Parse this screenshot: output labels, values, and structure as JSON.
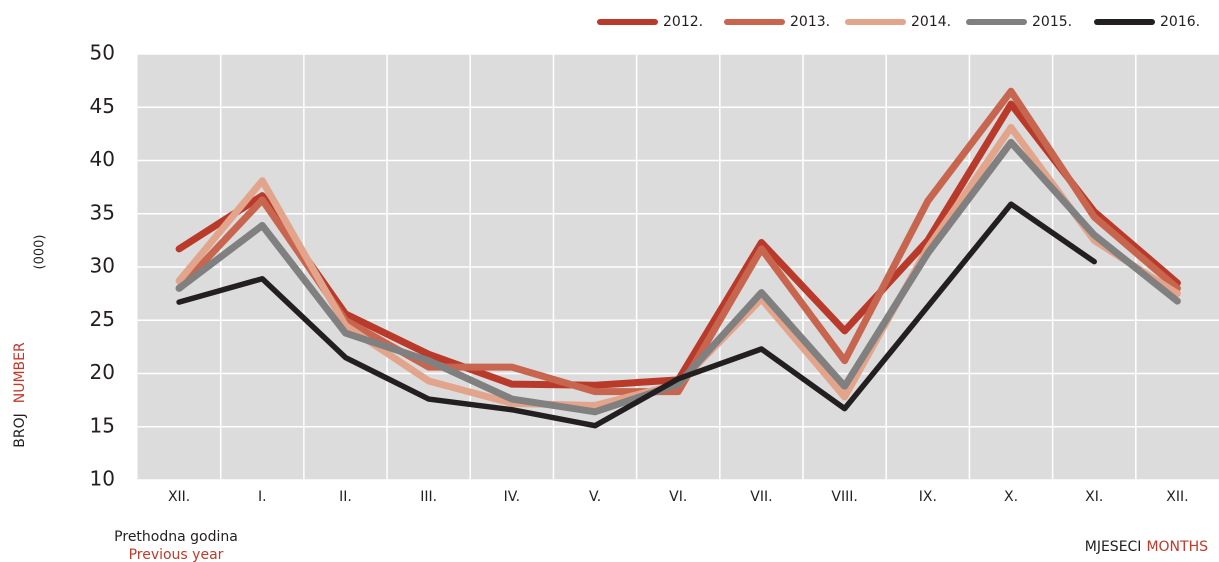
{
  "chart_data": {
    "type": "line",
    "y_label_main": "BROJ",
    "y_label_accent": "NUMBER",
    "y_unit": "(000)",
    "x_label_main": "MJESECI",
    "x_label_accent": "MONTHS",
    "note_main": "Prethodna godina",
    "note_accent": "Previous year",
    "categories": [
      "XII.",
      "I.",
      "II.",
      "III.",
      "IV.",
      "V.",
      "VI.",
      "VII.",
      "VIII.",
      "IX.",
      "X.",
      "XI.",
      "XII."
    ],
    "series": [
      {
        "name": "2012.",
        "color": "#b93a2a",
        "values": [
          31.7,
          36.7,
          25.6,
          21.8,
          19,
          18.9,
          19.4,
          32.3,
          24,
          32.5,
          45.3,
          35.2,
          28.5
        ]
      },
      {
        "name": "2013.",
        "color": "#c8654f",
        "values": [
          28,
          36.3,
          25,
          20.6,
          20.6,
          18.3,
          18.3,
          31.7,
          21.2,
          36.2,
          46.5,
          34.7,
          28
        ]
      },
      {
        "name": "2014.",
        "color": "#e3a48c",
        "values": [
          28.7,
          38.1,
          24.5,
          19.3,
          17.2,
          17,
          19,
          27,
          17.8,
          31.8,
          43.1,
          32.5,
          27.5
        ]
      },
      {
        "name": "2015.",
        "color": "#808080",
        "values": [
          28,
          33.9,
          23.8,
          21.2,
          17.6,
          16.4,
          19,
          27.6,
          18.8,
          31.3,
          41.7,
          33,
          26.8
        ]
      },
      {
        "name": "2016.",
        "color": "#231f20",
        "values": [
          26.7,
          28.9,
          21.5,
          17.6,
          16.6,
          15.1,
          19.5,
          22.3,
          16.7,
          26.3,
          35.9,
          30.5,
          null
        ]
      }
    ],
    "ylim": [
      10,
      50
    ],
    "yticks": [
      10,
      15,
      20,
      25,
      30,
      35,
      40,
      45,
      50
    ],
    "grid": true,
    "legend": "top-right"
  }
}
